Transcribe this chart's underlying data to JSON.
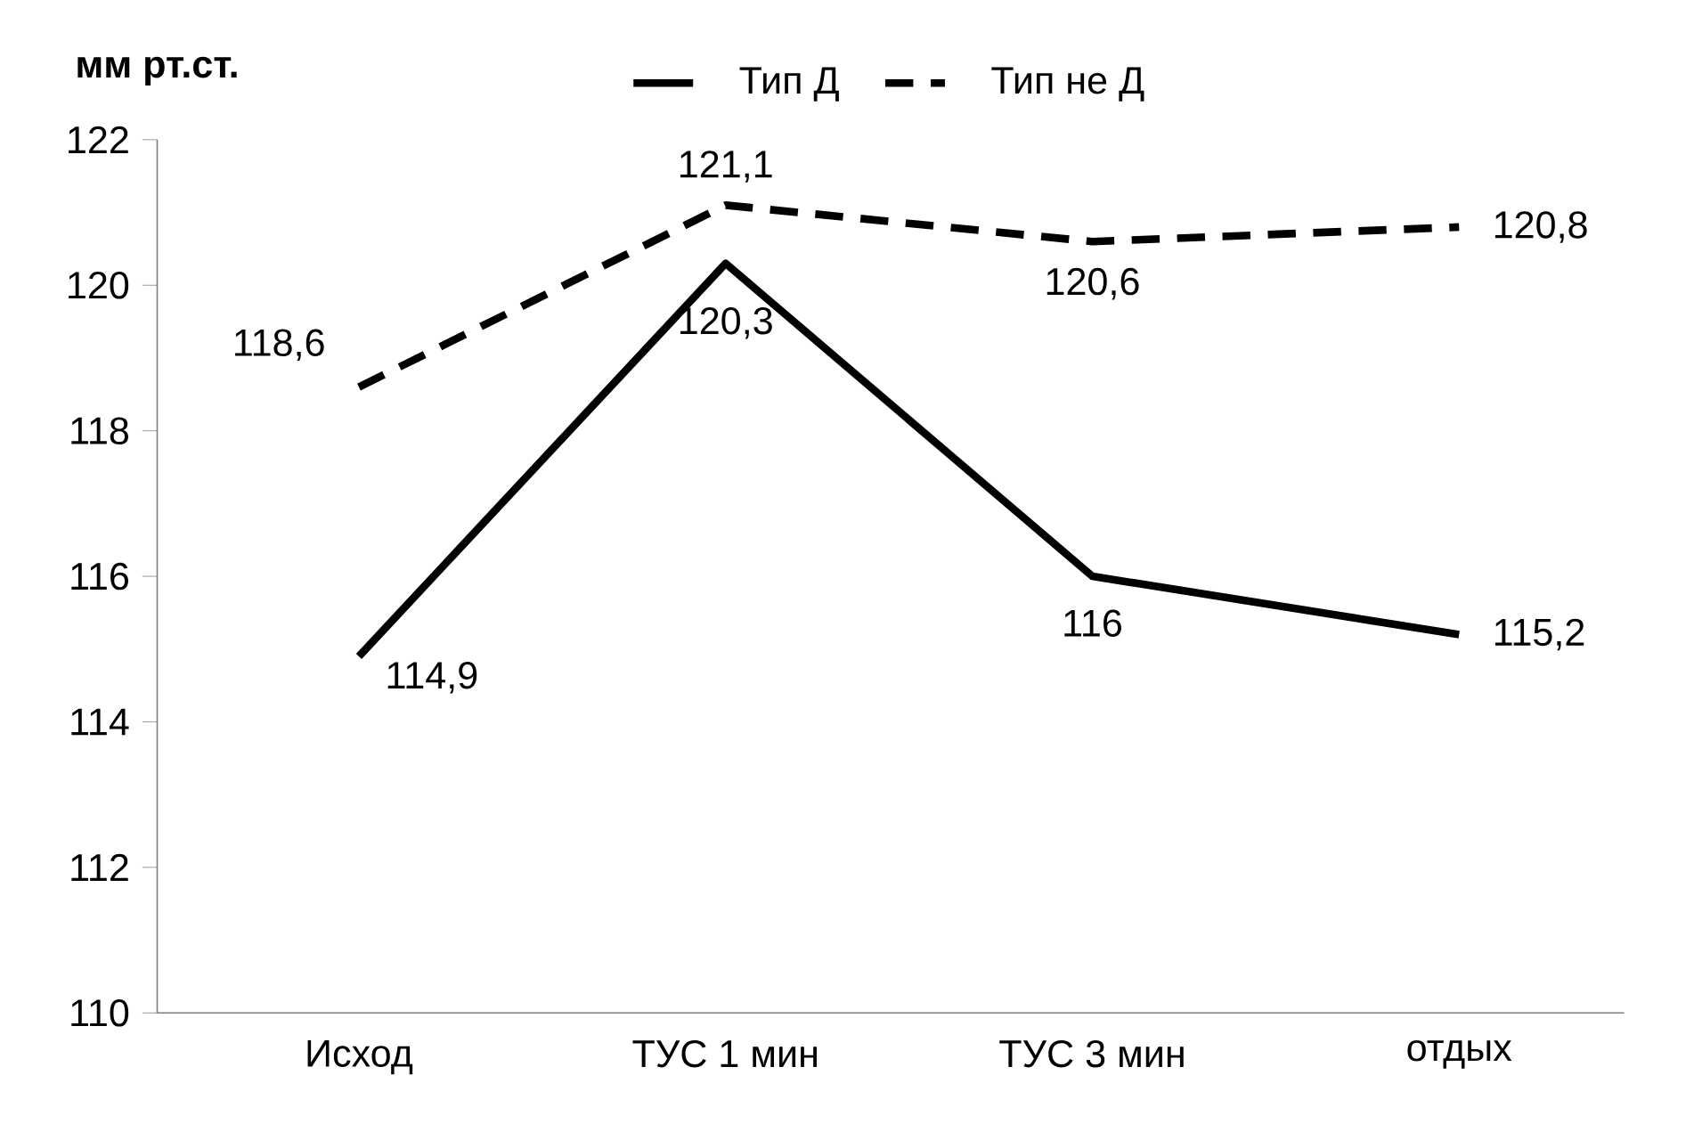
{
  "chart_data": {
    "type": "line",
    "ylabel": "мм рт.ст.",
    "categories": [
      "Исход",
      "ТУС 1 мин",
      "ТУС 3 мин",
      "отдых"
    ],
    "series": [
      {
        "name": "Тип Д",
        "color": "#000000",
        "line_style": "solid",
        "values": [
          114.9,
          120.3,
          116,
          115.2
        ],
        "value_labels": [
          "114,9",
          "120,3",
          "116",
          "115,2"
        ]
      },
      {
        "name": "Тип не Д",
        "color": "#000000",
        "line_style": "dashed",
        "values": [
          118.6,
          121.1,
          120.6,
          120.8
        ],
        "value_labels": [
          "118,6",
          "121,1",
          "120,6",
          "120,8"
        ]
      }
    ],
    "ylim": [
      110,
      122
    ],
    "yticks": [
      110,
      112,
      114,
      116,
      118,
      120,
      122
    ],
    "grid": false,
    "legend": "top",
    "marker": "none"
  }
}
